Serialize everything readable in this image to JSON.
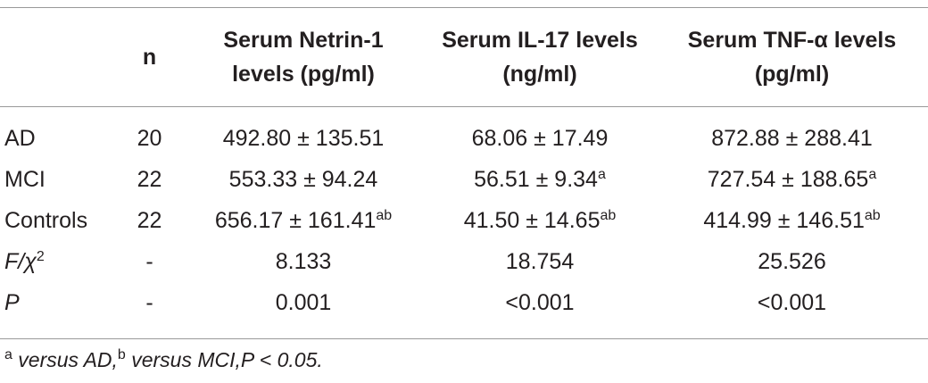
{
  "table": {
    "header": [
      "n",
      "Serum Netrin-1 levels (pg/ml)",
      "Serum IL-17 levels (ng/ml)",
      "Serum TNF-α levels (pg/ml)"
    ],
    "rows": [
      [
        {
          "text": "AD"
        },
        {
          "text": "20"
        },
        {
          "text": "492.80 ± 135.51"
        },
        {
          "text": "68.06 ± 17.49"
        },
        {
          "text": "872.88 ± 288.41"
        }
      ],
      [
        {
          "text": "MCI"
        },
        {
          "text": "22"
        },
        {
          "text": "553.33 ± 94.24"
        },
        {
          "text": "56.51 ± 9.34",
          "sup": "a"
        },
        {
          "text": "727.54 ± 188.65",
          "sup": "a"
        }
      ],
      [
        {
          "text": "Controls"
        },
        {
          "text": "22"
        },
        {
          "text": "656.17 ± 161.41",
          "sup": "ab"
        },
        {
          "text": "41.50 ± 14.65",
          "sup": "ab"
        },
        {
          "text": "414.99 ± 146.51",
          "sup": "ab"
        }
      ],
      [
        {
          "text": "F/χ",
          "sup": "2"
        },
        {
          "text": "-"
        },
        {
          "text": "8.133"
        },
        {
          "text": "18.754"
        },
        {
          "text": "25.526"
        }
      ],
      [
        {
          "text": "P"
        },
        {
          "text": "-"
        },
        {
          "text": "0.001"
        },
        {
          "text": "<0.001"
        },
        {
          "text": "<0.001"
        }
      ]
    ]
  },
  "footnote": [
    {
      "sup": "a"
    },
    {
      "text": " versus AD,"
    },
    {
      "sup": "b"
    },
    {
      "text": " versus MCI,P < 0.05."
    }
  ]
}
